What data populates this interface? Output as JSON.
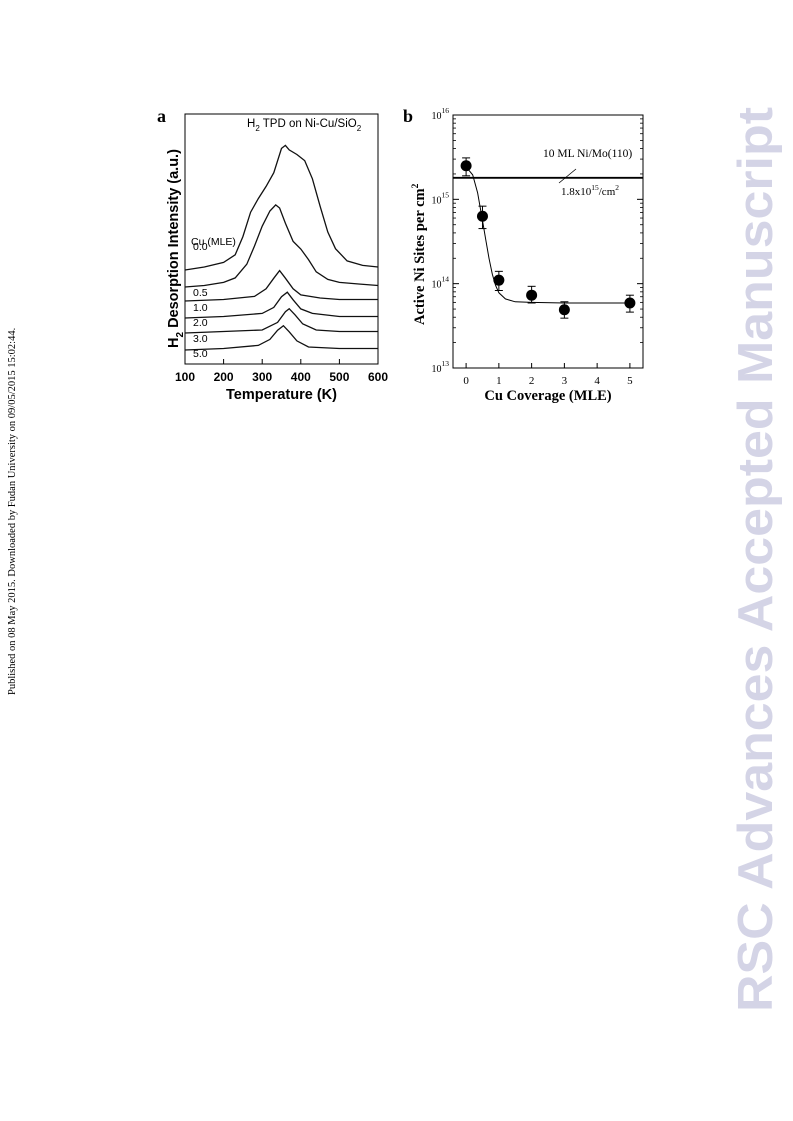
{
  "side_note": "Published on 08 May 2015. Downloaded by Fudan University on 09/05/2015 15:02:44.",
  "watermark": {
    "text": "RSC Advances Accepted Manuscript",
    "color": "#d4d4e6"
  },
  "chart_data": [
    {
      "panel_label": "a",
      "type": "line",
      "title_parts": {
        "h": "H",
        "sub2": "2",
        "mid": " TPD on Ni-Cu/SiO",
        "tail2": "2"
      },
      "xlabel": "Temperature (K)",
      "ylabel_parts": {
        "h": "H",
        "sub": "2",
        "rest": " Desorption Intensity (a.u.)"
      },
      "xlim": [
        100,
        600
      ],
      "xticks": [
        "100",
        "200",
        "300",
        "400",
        "500",
        "600"
      ],
      "legend_title": "Cu (MLE)",
      "series": [
        {
          "name": "0.0",
          "x": [
            100,
            150,
            200,
            230,
            250,
            270,
            290,
            310,
            330,
            350,
            360,
            370,
            390,
            410,
            430,
            450,
            470,
            490,
            520,
            560,
            600
          ],
          "y": [
            0,
            0.02,
            0.05,
            0.1,
            0.22,
            0.38,
            0.47,
            0.55,
            0.64,
            0.8,
            0.82,
            0.79,
            0.76,
            0.72,
            0.6,
            0.42,
            0.25,
            0.14,
            0.06,
            0.03,
            0.02
          ]
        },
        {
          "name": "0.5",
          "x": [
            100,
            150,
            200,
            230,
            260,
            280,
            300,
            320,
            335,
            345,
            360,
            380,
            400,
            420,
            440,
            470,
            500,
            550,
            600
          ],
          "y": [
            0,
            0.01,
            0.03,
            0.06,
            0.15,
            0.27,
            0.4,
            0.5,
            0.54,
            0.52,
            0.42,
            0.3,
            0.25,
            0.18,
            0.1,
            0.05,
            0.03,
            0.02,
            0.01
          ]
        },
        {
          "name": "1.0",
          "x": [
            100,
            200,
            280,
            310,
            330,
            345,
            360,
            380,
            400,
            450,
            500,
            600
          ],
          "y": [
            0,
            0.01,
            0.03,
            0.08,
            0.15,
            0.2,
            0.15,
            0.08,
            0.04,
            0.02,
            0.01,
            0.01
          ]
        },
        {
          "name": "2.0",
          "x": [
            100,
            200,
            300,
            330,
            350,
            365,
            380,
            400,
            430,
            500,
            600
          ],
          "y": [
            0,
            0.01,
            0.03,
            0.07,
            0.14,
            0.17,
            0.12,
            0.06,
            0.03,
            0.01,
            0.01
          ]
        },
        {
          "name": "3.0",
          "x": [
            100,
            200,
            300,
            340,
            360,
            370,
            385,
            405,
            440,
            500,
            600
          ],
          "y": [
            0,
            0.01,
            0.02,
            0.07,
            0.14,
            0.16,
            0.12,
            0.06,
            0.02,
            0.01,
            0.01
          ]
        },
        {
          "name": "5.0",
          "x": [
            100,
            200,
            290,
            320,
            340,
            355,
            370,
            390,
            420,
            500,
            600
          ],
          "y": [
            0,
            0.01,
            0.03,
            0.07,
            0.13,
            0.16,
            0.12,
            0.06,
            0.02,
            0.01,
            0.01
          ]
        }
      ]
    },
    {
      "panel_label": "b",
      "type": "scatter",
      "xlabel": "Cu Coverage (MLE)",
      "ylabel": "Active Ni Sites per cm",
      "ylabel_sup": "2",
      "xlim": [
        -0.4,
        5.4
      ],
      "xticks": [
        "0",
        "1",
        "2",
        "3",
        "4",
        "5"
      ],
      "y_scale": "log",
      "ylim": [
        10000000000000.0,
        1e+16
      ],
      "yticks": [
        {
          "base": "10",
          "exp": "13"
        },
        {
          "base": "10",
          "exp": "14"
        },
        {
          "base": "10",
          "exp": "15"
        },
        {
          "base": "10",
          "exp": "16"
        }
      ],
      "points": [
        {
          "x": 0.0,
          "y": 2500000000000000.0,
          "err_low": 1900000000000000.0,
          "err_high": 3100000000000000.0
        },
        {
          "x": 0.5,
          "y": 630000000000000.0,
          "err_low": 450000000000000.0,
          "err_high": 830000000000000.0
        },
        {
          "x": 1.0,
          "y": 110000000000000.0,
          "err_low": 83000000000000.0,
          "err_high": 140000000000000.0
        },
        {
          "x": 2.0,
          "y": 73000000000000.0,
          "err_low": 59000000000000.0,
          "err_high": 93000000000000.0
        },
        {
          "x": 3.0,
          "y": 49000000000000.0,
          "err_low": 39000000000000.0,
          "err_high": 61000000000000.0
        },
        {
          "x": 5.0,
          "y": 59000000000000.0,
          "err_low": 46000000000000.0,
          "err_high": 73000000000000.0
        }
      ],
      "fit_curve": {
        "x": [
          0.05,
          0.2,
          0.35,
          0.5,
          0.6,
          0.7,
          0.8,
          0.9,
          1.0,
          1.2,
          1.5,
          2.0,
          3.0,
          4.0,
          5.0
        ],
        "y": [
          2300000000000000.0,
          1950000000000000.0,
          1200000000000000.0,
          560000000000000.0,
          330000000000000.0,
          200000000000000.0,
          130000000000000.0,
          95000000000000.0,
          78000000000000.0,
          66000000000000.0,
          61000000000000.0,
          60000000000000.0,
          59000000000000.0,
          59000000000000.0,
          59000000000000.0
        ]
      },
      "reference_line": {
        "y": 1800000000000000.0,
        "label": "10 ML Ni/Mo(110)",
        "value_base": "1.8x10",
        "value_exp": "15",
        "value_unit": "/cm",
        "value_unit_exp": "2"
      }
    }
  ]
}
